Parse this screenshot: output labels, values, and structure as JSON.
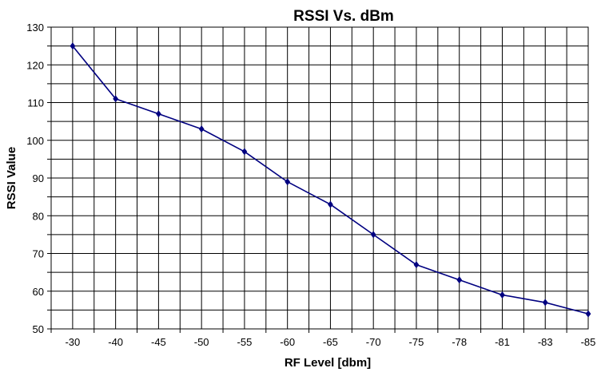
{
  "chart_data": {
    "type": "line",
    "title": "RSSI  Vs. dBm",
    "xlabel": "RF Level [dbm]",
    "ylabel": "RSSI Value",
    "categories": [
      "-30",
      "-40",
      "-45",
      "-50",
      "-55",
      "-60",
      "-65",
      "-70",
      "-75",
      "-78",
      "-81",
      "-83",
      "-85"
    ],
    "series": [
      {
        "values": [
          125,
          111,
          107,
          103,
          97,
          89,
          83,
          75,
          67,
          63,
          59,
          57,
          54
        ]
      }
    ],
    "ylim": [
      50,
      130
    ],
    "yticks": [
      "50",
      "60",
      "70",
      "80",
      "90",
      "100",
      "110",
      "120",
      "130"
    ],
    "grid": true,
    "legend": "none",
    "colors": {
      "line": "#000080",
      "grid": "#000000",
      "background": "#ffffff"
    }
  }
}
